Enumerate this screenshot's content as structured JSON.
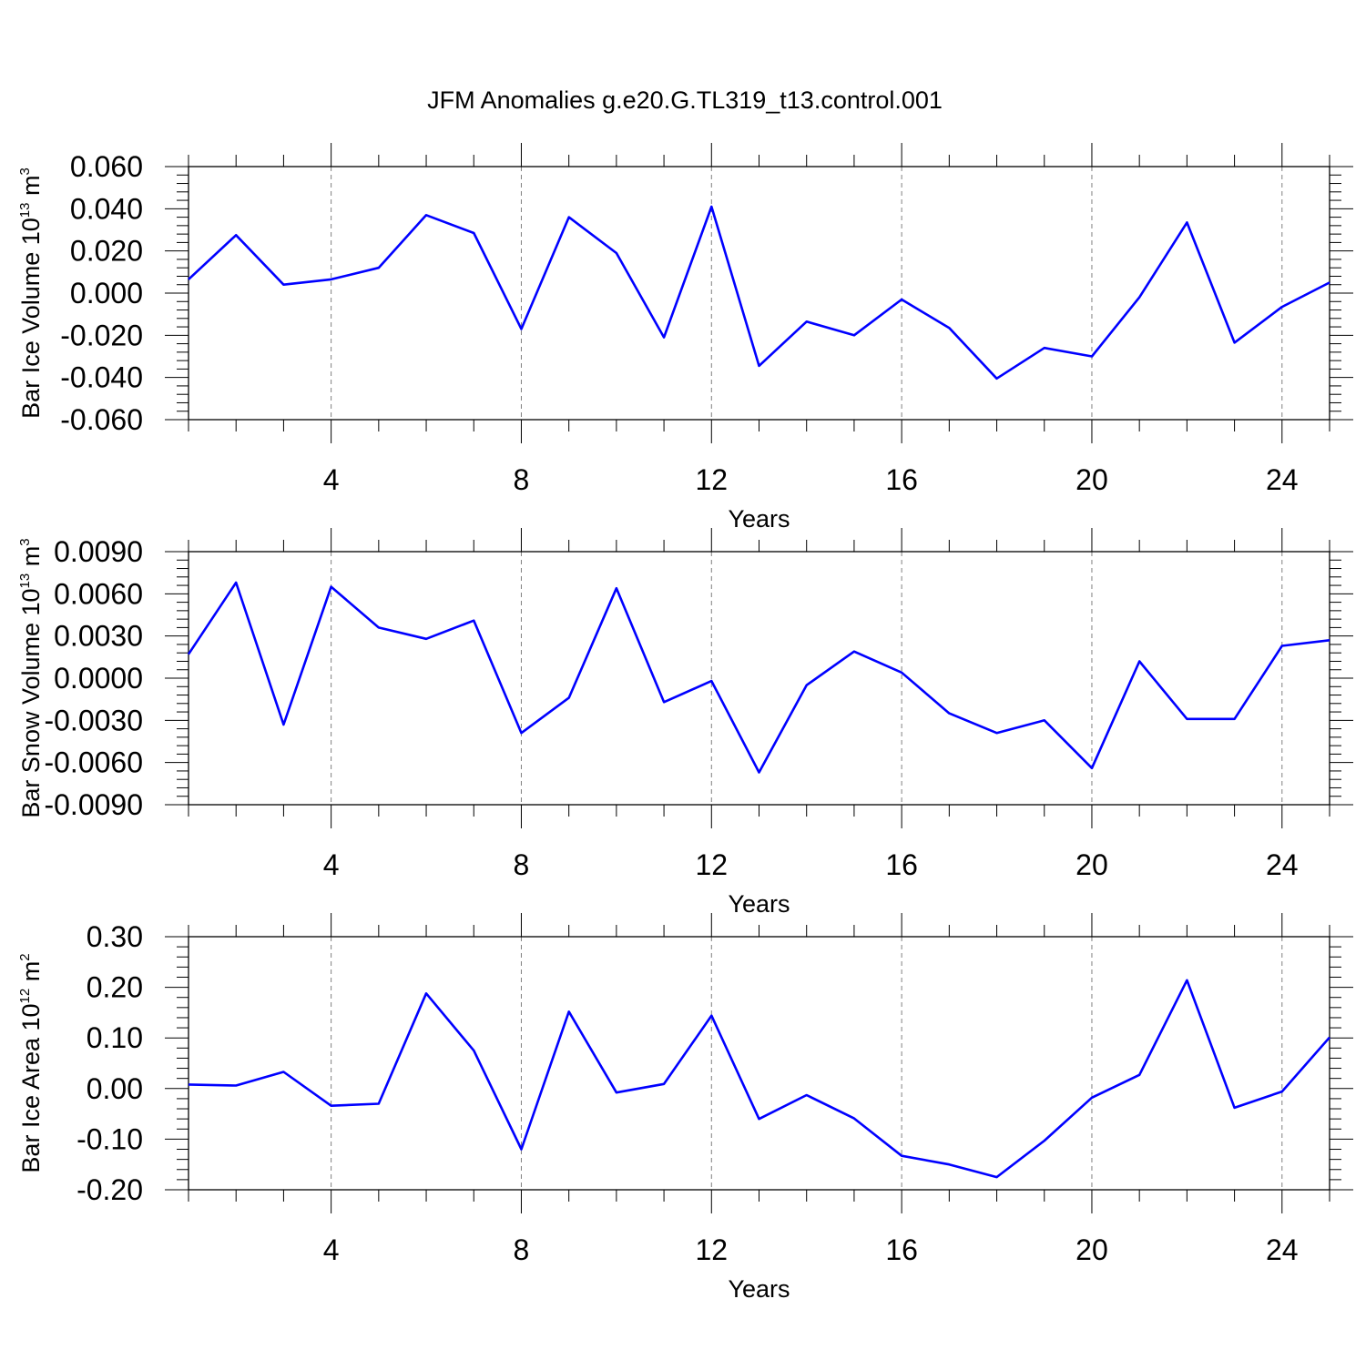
{
  "figure_title": "JFM Anomalies g.e20.G.TL319_t13.control.001",
  "line_color": "#0000ff",
  "chart_data": [
    {
      "type": "line",
      "title": "JFM Anomalies g.e20.G.TL319_t13.control.001",
      "xlabel": "Years",
      "ylabel": {
        "main": "Bar Ice Volume 10",
        "exp": "13",
        "unit": " m",
        "unit_exp": "3"
      },
      "x": [
        1,
        2,
        3,
        4,
        5,
        6,
        7,
        8,
        9,
        10,
        11,
        12,
        13,
        14,
        15,
        16,
        17,
        18,
        19,
        20,
        21,
        22,
        23,
        24,
        25
      ],
      "xlim": [
        1,
        25
      ],
      "xticks": [
        4,
        8,
        12,
        16,
        20,
        24
      ],
      "xtick_labels": [
        "4",
        "8",
        "12",
        "16",
        "20",
        "24"
      ],
      "ylim": [
        -0.06,
        0.06
      ],
      "yticks": [
        0.06,
        0.04,
        0.02,
        0.0,
        -0.02,
        -0.04,
        -0.06
      ],
      "ytick_labels": [
        "0.060",
        "0.040",
        "0.020",
        "0.000",
        "-0.020",
        "-0.040",
        "-0.060"
      ],
      "series": [
        {
          "name": "Bar Ice Volume",
          "values": [
            0.0065,
            0.0275,
            0.004,
            0.0065,
            0.012,
            0.037,
            0.0285,
            -0.017,
            0.036,
            0.019,
            -0.021,
            0.041,
            -0.0345,
            -0.0135,
            -0.02,
            -0.003,
            -0.0165,
            -0.0405,
            -0.026,
            -0.03,
            -0.002,
            0.0335,
            -0.0235,
            -0.0065,
            0.005
          ]
        }
      ]
    },
    {
      "type": "line",
      "xlabel": "Years",
      "ylabel": {
        "main": "Bar Snow Volume 10",
        "exp": "13",
        "unit": " m",
        "unit_exp": "3"
      },
      "x": [
        1,
        2,
        3,
        4,
        5,
        6,
        7,
        8,
        9,
        10,
        11,
        12,
        13,
        14,
        15,
        16,
        17,
        18,
        19,
        20,
        21,
        22,
        23,
        24,
        25
      ],
      "xlim": [
        1,
        25
      ],
      "xticks": [
        4,
        8,
        12,
        16,
        20,
        24
      ],
      "xtick_labels": [
        "4",
        "8",
        "12",
        "16",
        "20",
        "24"
      ],
      "ylim": [
        -0.009,
        0.009
      ],
      "yticks": [
        0.009,
        0.006,
        0.003,
        0.0,
        -0.003,
        -0.006,
        -0.009
      ],
      "ytick_labels": [
        "0.0090",
        "0.0060",
        "0.0030",
        "0.0000",
        "-0.0030",
        "-0.0060",
        "-0.0090"
      ],
      "series": [
        {
          "name": "Bar Snow Volume",
          "values": [
            0.0017,
            0.0068,
            -0.0033,
            0.0065,
            0.0036,
            0.0028,
            0.0041,
            -0.0039,
            -0.0014,
            0.0064,
            -0.0017,
            -0.0002,
            -0.0067,
            -0.0005,
            0.0019,
            0.0004,
            -0.0025,
            -0.0039,
            -0.003,
            -0.0064,
            0.0012,
            -0.0029,
            -0.0029,
            0.0023,
            0.0027
          ]
        }
      ]
    },
    {
      "type": "line",
      "xlabel": "Years",
      "ylabel": {
        "main": "Bar Ice Area 10",
        "exp": "12",
        "unit": " m",
        "unit_exp": "2"
      },
      "x": [
        1,
        2,
        3,
        4,
        5,
        6,
        7,
        8,
        9,
        10,
        11,
        12,
        13,
        14,
        15,
        16,
        17,
        18,
        19,
        20,
        21,
        22,
        23,
        24,
        25
      ],
      "xlim": [
        1,
        25
      ],
      "xticks": [
        4,
        8,
        12,
        16,
        20,
        24
      ],
      "xtick_labels": [
        "4",
        "8",
        "12",
        "16",
        "20",
        "24"
      ],
      "ylim": [
        -0.2,
        0.3
      ],
      "yticks": [
        0.3,
        0.2,
        0.1,
        0.0,
        -0.1,
        -0.2
      ],
      "ytick_labels": [
        "0.30",
        "0.20",
        "0.10",
        "0.00",
        "-0.10",
        "-0.20"
      ],
      "series": [
        {
          "name": "Bar Ice Area",
          "values": [
            0.008,
            0.006,
            0.033,
            -0.034,
            -0.03,
            0.188,
            0.075,
            -0.12,
            0.152,
            -0.008,
            0.009,
            0.144,
            -0.06,
            -0.013,
            -0.059,
            -0.133,
            -0.15,
            -0.175,
            -0.103,
            -0.018,
            0.027,
            0.214,
            -0.038,
            -0.006,
            0.101
          ]
        }
      ]
    }
  ]
}
